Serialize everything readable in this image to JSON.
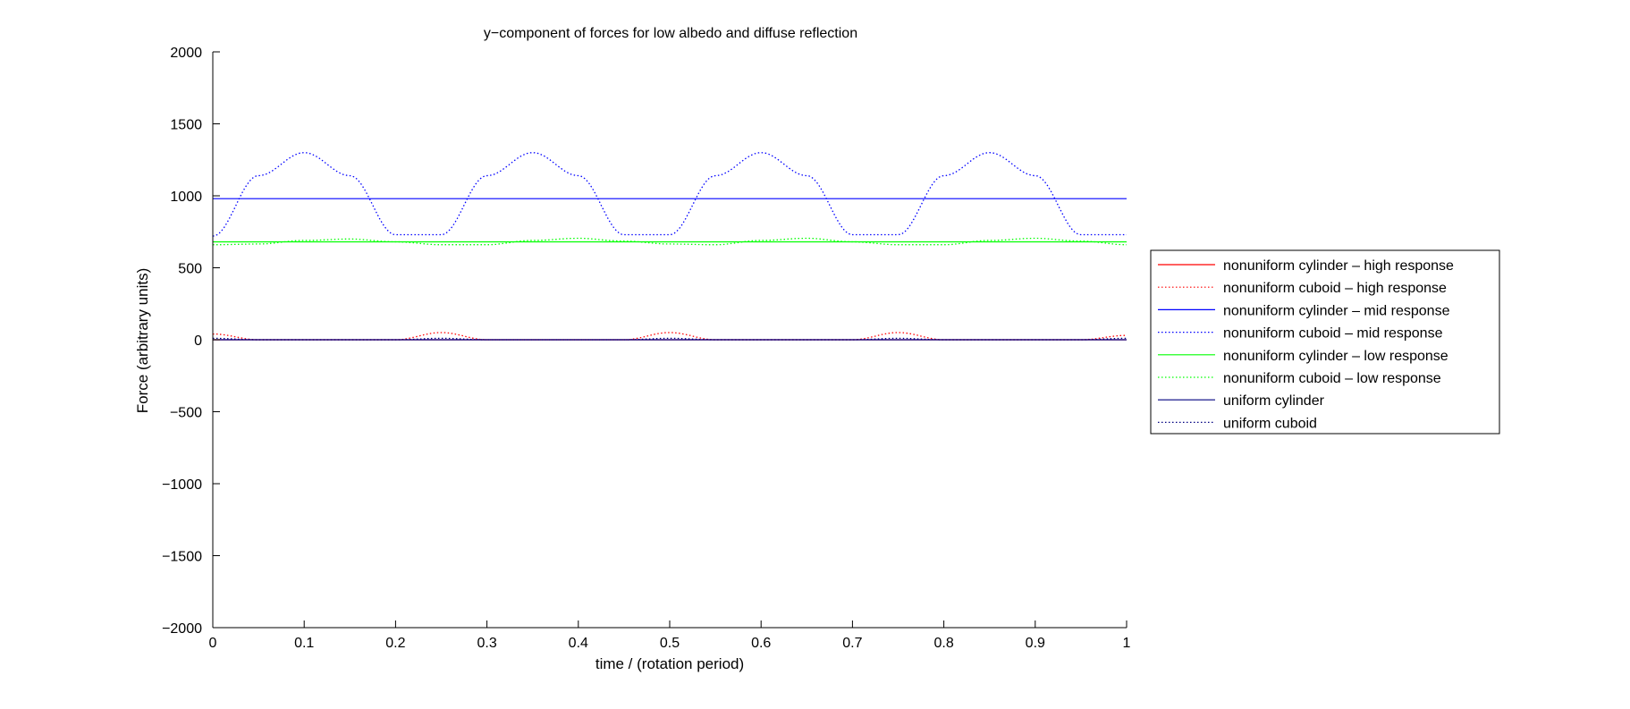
{
  "chart_data": {
    "type": "line",
    "title": "y−component of forces for low  albedo and diffuse  reflection",
    "xlabel": "time / (rotation period)",
    "ylabel": "Force (arbitrary units)",
    "xlim": [
      0,
      1
    ],
    "ylim": [
      -2000,
      2000
    ],
    "xticks": [
      0,
      0.1,
      0.2,
      0.3,
      0.4,
      0.5,
      0.6,
      0.7,
      0.8,
      0.9,
      1
    ],
    "xtick_labels": [
      "0",
      "0.1",
      "0.2",
      "0.3",
      "0.4",
      "0.5",
      "0.6",
      "0.7",
      "0.8",
      "0.9",
      "1"
    ],
    "yticks": [
      2000,
      1500,
      1000,
      500,
      0,
      -500,
      -1000,
      -1500,
      -2000
    ],
    "ytick_labels": [
      "2000",
      "1500",
      "1000",
      "500",
      "0",
      "−500",
      "−1000",
      "−1500",
      "−2000"
    ],
    "grid": false,
    "legend_position": "outside-right",
    "x": [
      0,
      0.05,
      0.1,
      0.15,
      0.2,
      0.25,
      0.3,
      0.35,
      0.4,
      0.45,
      0.5,
      0.55,
      0.6,
      0.65,
      0.7,
      0.75,
      0.8,
      0.85,
      0.9,
      0.95,
      1
    ],
    "series": [
      {
        "name": "nonuniform cylinder – high response",
        "color": "#ff0000",
        "style": "solid",
        "values": [
          0,
          0,
          0,
          0,
          0,
          0,
          0,
          0,
          0,
          0,
          0,
          0,
          0,
          0,
          0,
          0,
          0,
          0,
          0,
          0,
          0
        ]
      },
      {
        "name": "nonuniform cuboid – high response",
        "color": "#ff0000",
        "style": "dotted",
        "values": [
          40,
          0,
          0,
          0,
          0,
          50,
          0,
          0,
          0,
          0,
          50,
          0,
          0,
          0,
          0,
          50,
          0,
          0,
          0,
          0,
          30
        ]
      },
      {
        "name": "nonuniform cylinder – mid response",
        "color": "#0000ff",
        "style": "solid",
        "values": [
          980,
          980,
          980,
          980,
          980,
          980,
          980,
          980,
          980,
          980,
          980,
          980,
          980,
          980,
          980,
          980,
          980,
          980,
          980,
          980,
          980
        ]
      },
      {
        "name": "nonuniform cuboid – mid response",
        "color": "#0000ff",
        "style": "dotted",
        "values": [
          720,
          1140,
          1300,
          1140,
          730,
          730,
          1140,
          1300,
          1140,
          730,
          730,
          1140,
          1300,
          1140,
          730,
          730,
          1140,
          1300,
          1140,
          730,
          730
        ]
      },
      {
        "name": "nonuniform cylinder – low response",
        "color": "#00ff00",
        "style": "solid",
        "values": [
          680,
          680,
          680,
          680,
          680,
          680,
          680,
          680,
          680,
          680,
          680,
          680,
          680,
          680,
          680,
          680,
          680,
          680,
          680,
          680,
          680
        ]
      },
      {
        "name": "nonuniform cuboid – low response",
        "color": "#00ff00",
        "style": "dotted",
        "values": [
          660,
          665,
          690,
          700,
          680,
          660,
          660,
          690,
          705,
          685,
          665,
          660,
          690,
          705,
          680,
          660,
          660,
          690,
          705,
          685,
          660
        ]
      },
      {
        "name": "uniform cylinder",
        "color": "#000080",
        "style": "solid",
        "values": [
          0,
          0,
          0,
          0,
          0,
          0,
          0,
          0,
          0,
          0,
          0,
          0,
          0,
          0,
          0,
          0,
          0,
          0,
          0,
          0,
          0
        ]
      },
      {
        "name": "uniform cuboid",
        "color": "#000080",
        "style": "dotted",
        "values": [
          10,
          0,
          0,
          0,
          0,
          10,
          0,
          0,
          0,
          0,
          10,
          0,
          0,
          0,
          0,
          10,
          0,
          0,
          0,
          0,
          10
        ]
      }
    ]
  }
}
